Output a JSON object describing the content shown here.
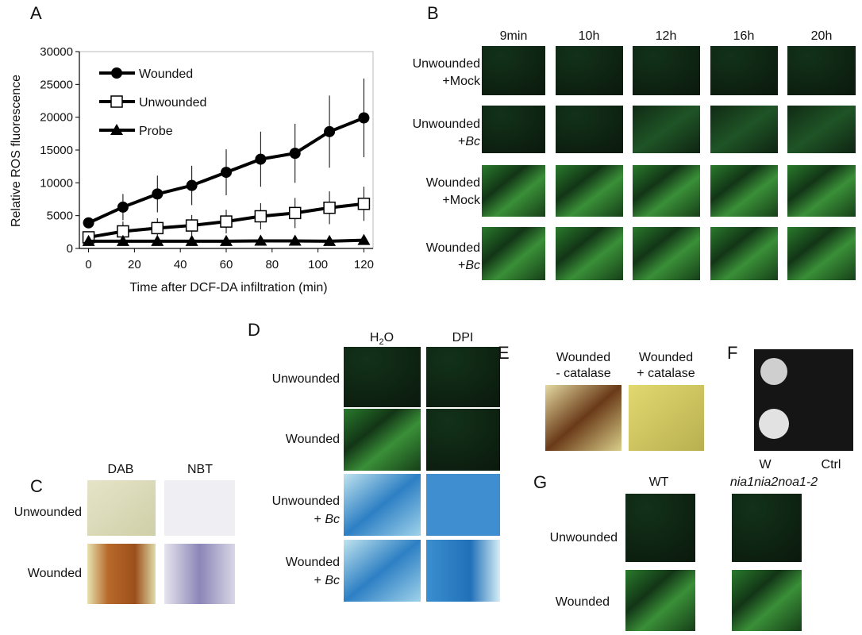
{
  "chart_data": {
    "type": "line",
    "panel": "A",
    "x_label": "Time after DCF-DA infiltration (min)",
    "y_label": "Relative ROS fluorescence",
    "x": [
      0,
      15,
      30,
      45,
      60,
      75,
      90,
      105,
      120
    ],
    "series": [
      {
        "name": "Wounded",
        "color": "#000000",
        "marker": "circle",
        "values": [
          3900,
          6300,
          8300,
          9600,
          11600,
          13600,
          14500,
          17800,
          19900
        ],
        "errors": [
          600,
          2000,
          2800,
          3000,
          3500,
          4200,
          4500,
          5500,
          6000
        ]
      },
      {
        "name": "Unwounded",
        "color": "#000000",
        "marker": "square",
        "values": [
          1700,
          2600,
          3100,
          3500,
          4100,
          4900,
          5400,
          6200,
          6800
        ],
        "errors": [
          600,
          1500,
          1500,
          1600,
          1800,
          2000,
          2300,
          2500,
          2600
        ]
      },
      {
        "name": "Probe",
        "color": "#000000",
        "marker": "triangle",
        "values": [
          1100,
          1100,
          1100,
          1100,
          1100,
          1150,
          1150,
          1100,
          1250
        ]
      }
    ],
    "xlim": [
      -4,
      124
    ],
    "xticks": [
      0,
      20,
      40,
      60,
      80,
      100,
      120
    ],
    "ylim": [
      0,
      30000
    ],
    "yticks": [
      0,
      5000,
      10000,
      15000,
      20000,
      25000,
      30000
    ],
    "legend": "upper-left"
  },
  "panel_b": {
    "label": "B",
    "columns": [
      "9min",
      "10h",
      "12h",
      "16h",
      "20h"
    ],
    "rows": [
      [
        "Unwounded",
        "+Mock"
      ],
      [
        "Unwounded",
        {
          "prefix": "+",
          "italic": "Bc"
        }
      ],
      [
        "Wounded",
        "+Mock"
      ],
      [
        "Wounded",
        {
          "prefix": "+",
          "italic": "Bc"
        }
      ]
    ]
  },
  "panel_c": {
    "label": "C",
    "columns": [
      "DAB",
      "NBT"
    ],
    "rows": [
      "Unwounded",
      "Wounded"
    ]
  },
  "panel_d": {
    "label": "D",
    "columns": [
      [
        "H",
        "2",
        "O"
      ],
      "DPI"
    ],
    "rows": [
      "Unwounded",
      "Wounded",
      [
        "Unwounded",
        {
          "prefix": "+ ",
          "italic": "Bc"
        }
      ],
      [
        "Wounded",
        {
          "prefix": "+ ",
          "italic": "Bc"
        }
      ]
    ]
  },
  "panel_e": {
    "label": "E",
    "columns": [
      [
        "Wounded",
        "- catalase"
      ],
      [
        "Wounded",
        "+ catalase"
      ]
    ]
  },
  "panel_f": {
    "label": "F",
    "columns": [
      "W",
      "Ctrl"
    ]
  },
  "panel_g": {
    "label": "G",
    "columns": [
      "WT",
      "nia1nia2noa1-2"
    ],
    "rows": [
      "Unwounded",
      "Wounded"
    ]
  }
}
